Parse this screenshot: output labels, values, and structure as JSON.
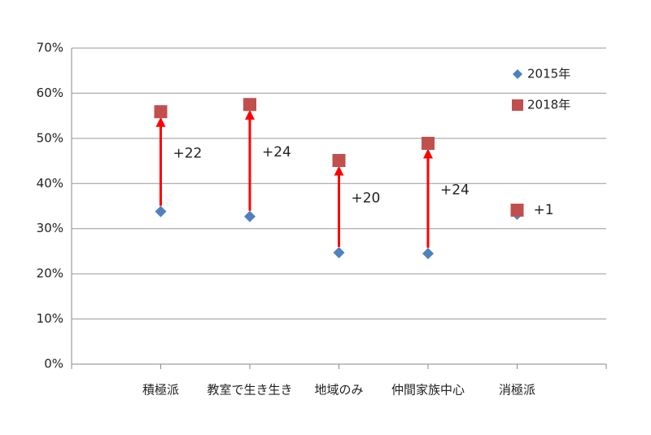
{
  "chart_data": {
    "type": "scatter",
    "categories": [
      "積極派",
      "教室で生き生き",
      "地域のみ",
      "仲間家族中心",
      "消極派"
    ],
    "series": [
      {
        "name": "2015年",
        "color": "#4f81bd",
        "marker": "diamond",
        "values": [
          33.8,
          32.7,
          24.7,
          24.5,
          33.2
        ]
      },
      {
        "name": "2018年",
        "color": "#c0504d",
        "marker": "square",
        "values": [
          55.9,
          57.5,
          45.1,
          48.9,
          34.1
        ]
      }
    ],
    "annotations": [
      "+22",
      "+24",
      "+20",
      "+24",
      "+1"
    ],
    "arrow_color": "#ff0000",
    "ylim": [
      0,
      70
    ],
    "yticks": [
      {
        "value": 0,
        "label": "0%"
      },
      {
        "value": 10,
        "label": "10%"
      },
      {
        "value": 20,
        "label": "20%"
      },
      {
        "value": 30,
        "label": "30%"
      },
      {
        "value": 40,
        "label": "40%"
      },
      {
        "value": 50,
        "label": "50%"
      },
      {
        "value": 60,
        "label": "60%"
      },
      {
        "value": 70,
        "label": "70%"
      }
    ],
    "grid": true,
    "legend": "upper right"
  }
}
